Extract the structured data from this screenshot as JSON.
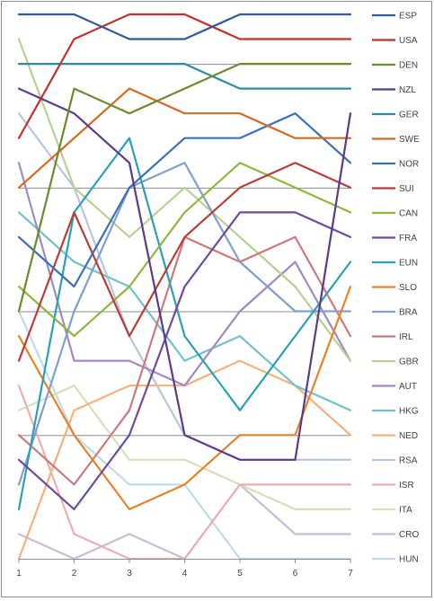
{
  "chart_data": {
    "type": "line",
    "title": "",
    "xlabel": "",
    "ylabel": "",
    "x": [
      1,
      2,
      3,
      4,
      5,
      6,
      7
    ],
    "ylim": [
      1,
      23
    ],
    "y_inverted": true,
    "grid": "horizontal",
    "legend": "right",
    "series": [
      {
        "name": "ESP",
        "color": "#2e5a9c",
        "values": [
          1,
          1,
          2,
          2,
          1,
          1,
          1
        ]
      },
      {
        "name": "USA",
        "color": "#c0302c",
        "values": [
          6,
          2,
          1,
          1,
          2,
          2,
          2
        ]
      },
      {
        "name": "DEN",
        "color": "#6b8a2c",
        "values": [
          13,
          4,
          5,
          4,
          3,
          3,
          3
        ]
      },
      {
        "name": "NZL",
        "color": "#5a3a8c",
        "values": [
          4,
          5,
          7,
          18,
          19,
          19,
          5
        ]
      },
      {
        "name": "GER",
        "color": "#2a8ea0",
        "values": [
          3,
          3,
          3,
          3,
          4,
          4,
          4
        ]
      },
      {
        "name": "SWE",
        "color": "#d46a22",
        "values": [
          8,
          6,
          4,
          5,
          5,
          6,
          6
        ]
      },
      {
        "name": "NOR",
        "color": "#3a70b8",
        "values": [
          10,
          12,
          8,
          6,
          6,
          5,
          7
        ]
      },
      {
        "name": "SUI",
        "color": "#b83c38",
        "values": [
          15,
          9,
          14,
          10,
          8,
          7,
          8
        ]
      },
      {
        "name": "CAN",
        "color": "#8cb83c",
        "values": [
          12,
          14,
          12,
          9,
          7,
          8,
          9
        ]
      },
      {
        "name": "FRA",
        "color": "#6e4a9e",
        "values": [
          19,
          21,
          18,
          12,
          9,
          9,
          10
        ]
      },
      {
        "name": "EUN",
        "color": "#2aa0b8",
        "values": [
          21,
          9,
          6,
          14,
          17,
          14,
          11
        ]
      },
      {
        "name": "SLO",
        "color": "#e6822a",
        "values": [
          14,
          18,
          21,
          20,
          18,
          18,
          12
        ]
      },
      {
        "name": "BRA",
        "color": "#7f9fd0",
        "values": [
          20,
          13,
          8,
          7,
          11,
          13,
          13
        ]
      },
      {
        "name": "IRL",
        "color": "#d07878",
        "values": [
          18,
          20,
          17,
          10,
          11,
          10,
          14
        ]
      },
      {
        "name": "GBR",
        "color": "#b8d090",
        "values": [
          2,
          8,
          10,
          8,
          10,
          12,
          15
        ]
      },
      {
        "name": "AUT",
        "color": "#9e8ac0",
        "values": [
          7,
          15,
          15,
          16,
          13,
          11,
          15
        ]
      },
      {
        "name": "HKG",
        "color": "#70c0d0",
        "values": [
          9,
          11,
          12,
          15,
          14,
          16,
          17
        ]
      },
      {
        "name": "NED",
        "color": "#f8b07a",
        "values": [
          23,
          17,
          16,
          16,
          15,
          16,
          18
        ]
      },
      {
        "name": "RSA",
        "color": "#b8c4e0",
        "values": [
          5,
          8,
          14,
          18,
          19,
          19,
          19
        ]
      },
      {
        "name": "ISR",
        "color": "#e8b0b0",
        "values": [
          16,
          22,
          23,
          23,
          20,
          20,
          20
        ]
      },
      {
        "name": "ITA",
        "color": "#d4e0b8",
        "values": [
          17,
          16,
          19,
          19,
          20,
          21,
          21
        ]
      },
      {
        "name": "CRO",
        "color": "#c8bcd8",
        "values": [
          22,
          23,
          22,
          23,
          20,
          22,
          22
        ]
      },
      {
        "name": "HUN",
        "color": "#bcdce6",
        "values": [
          13,
          18,
          20,
          20,
          23,
          23,
          23
        ]
      }
    ]
  }
}
